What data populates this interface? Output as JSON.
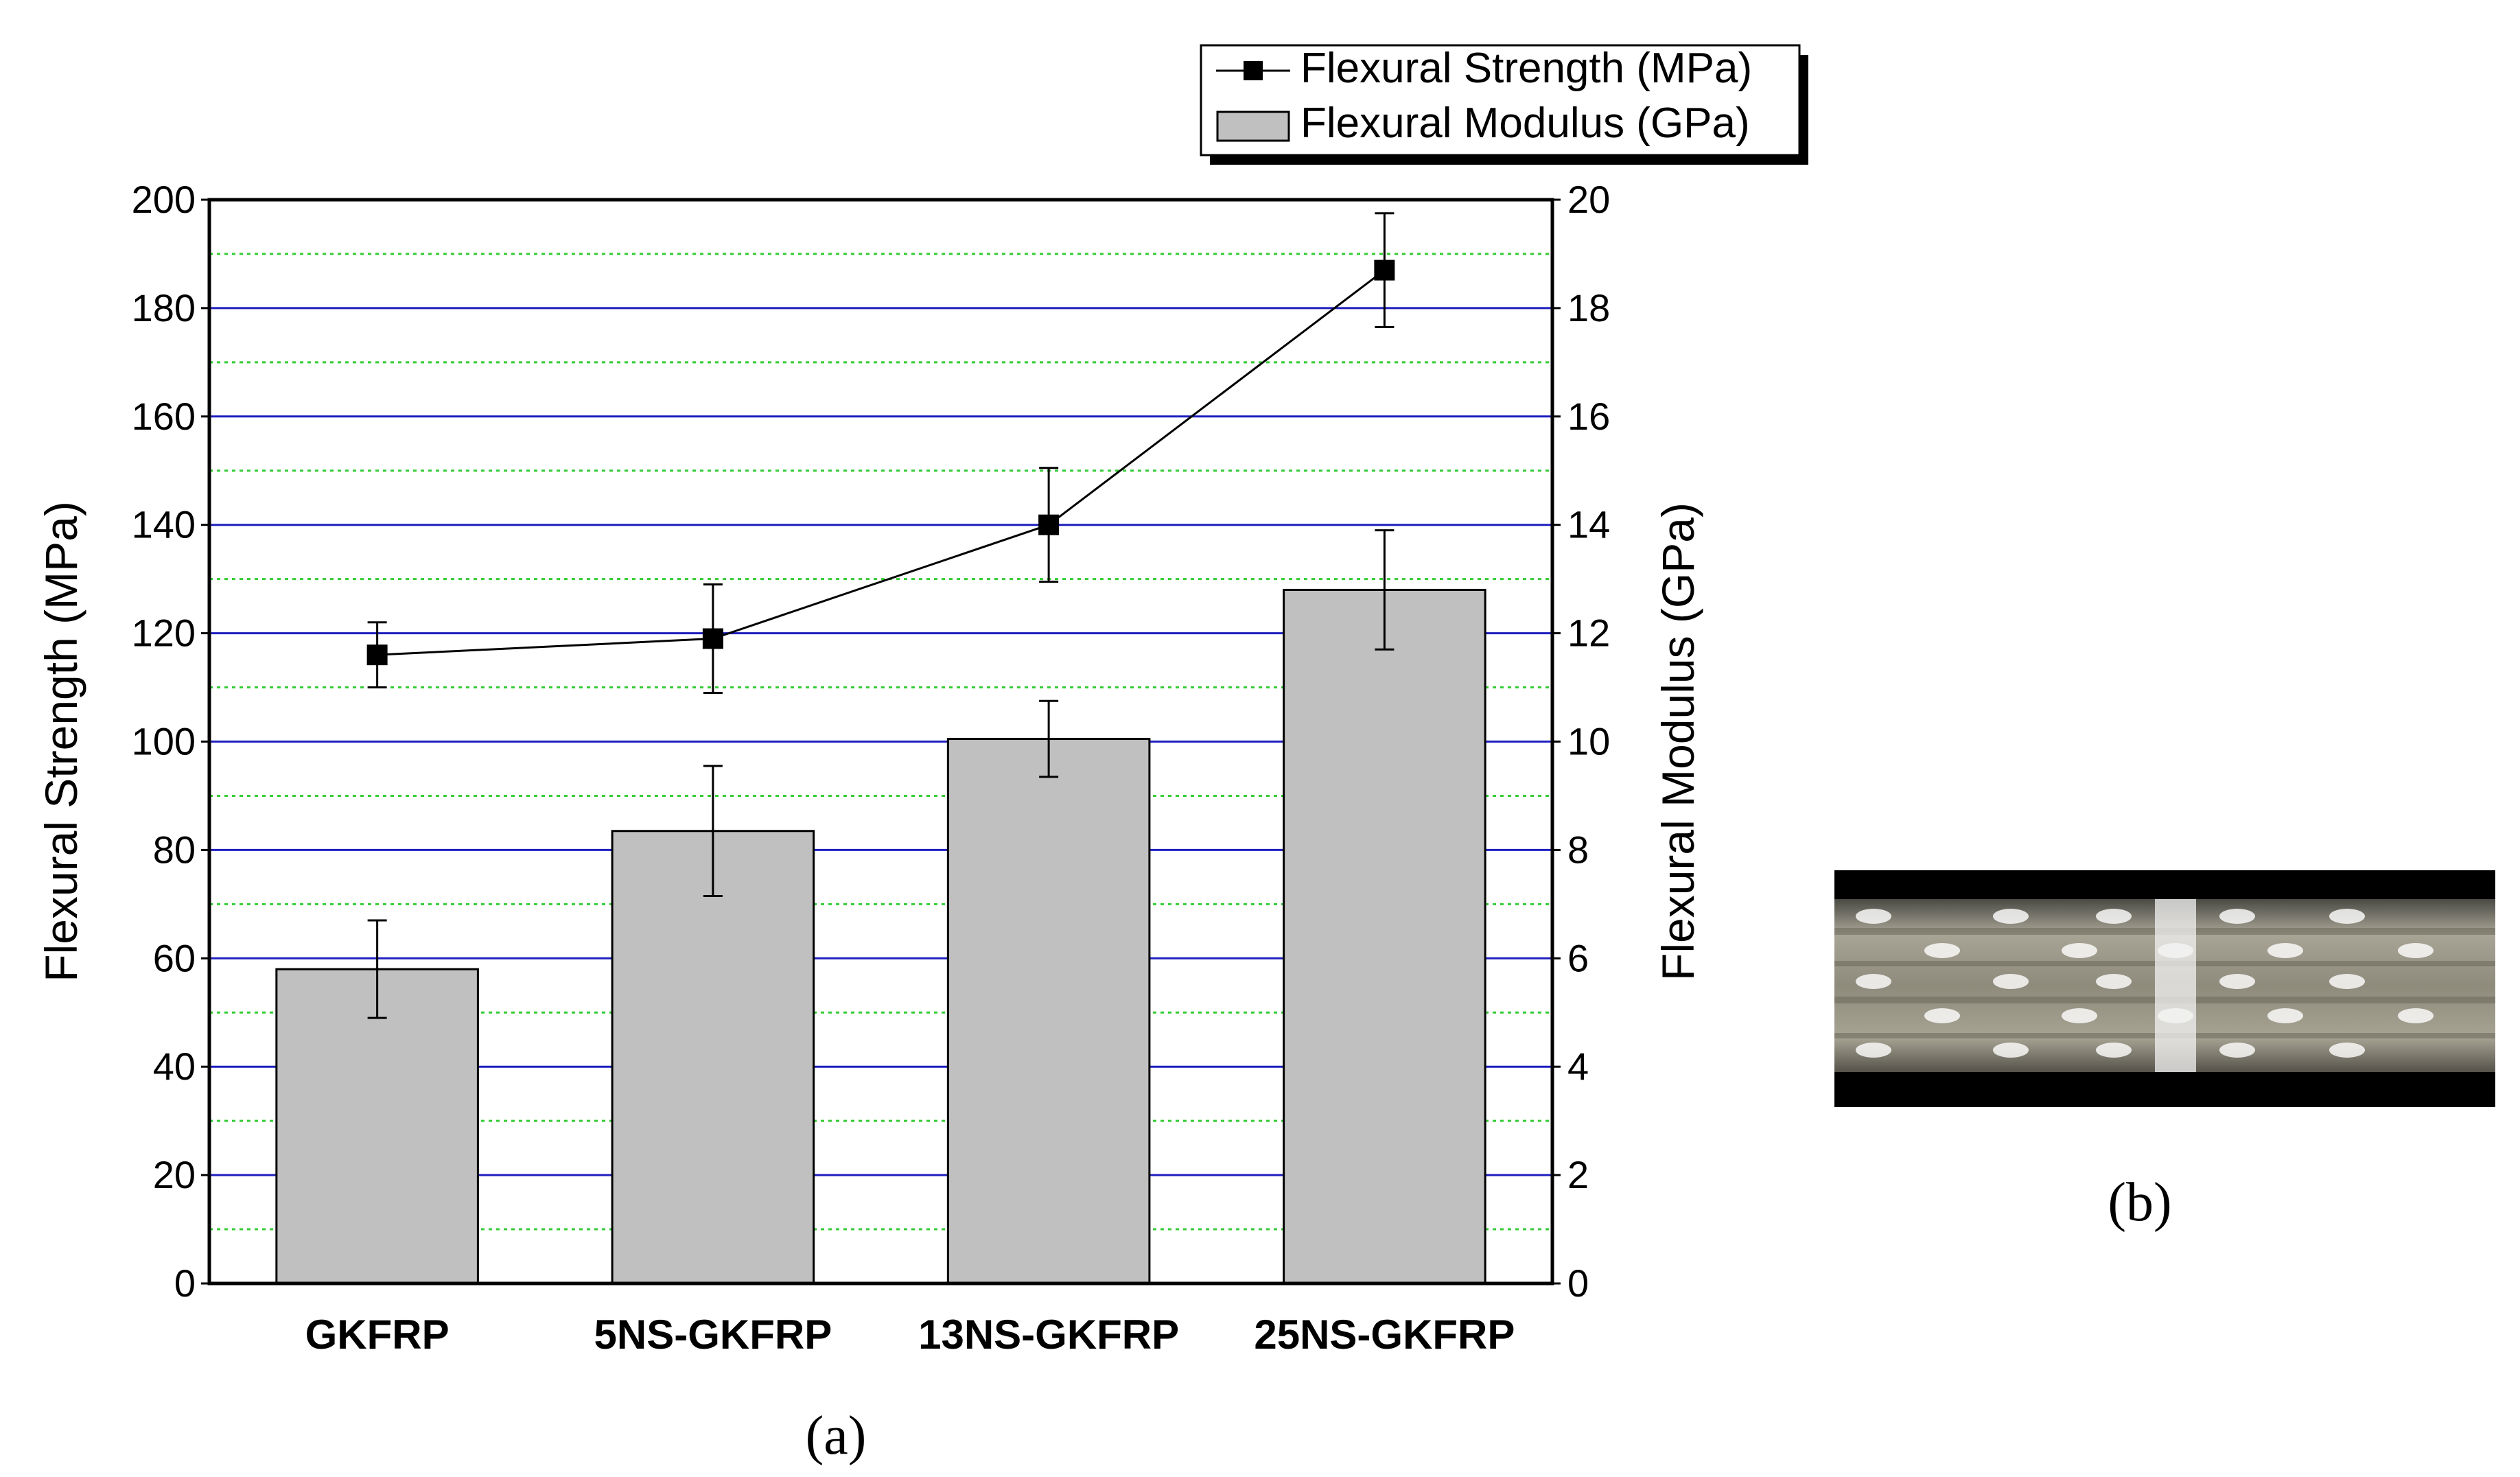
{
  "chart_data": {
    "type": "bar",
    "categories": [
      "GKFRP",
      "5NS-GKFRP",
      "13NS-GKFRP",
      "25NS-GKFRP"
    ],
    "series": [
      {
        "name": "Flexural Modulus (GPa)",
        "kind": "bar",
        "axis": "right",
        "values": [
          5.8,
          8.35,
          10.05,
          12.8
        ],
        "errors": [
          0.9,
          1.2,
          0.7,
          1.1
        ],
        "color": "#c0c0c0"
      },
      {
        "name": "Flexural Strength (MPa)",
        "kind": "line",
        "axis": "left",
        "values": [
          116,
          119,
          140,
          187
        ],
        "errors": [
          6,
          10,
          10.5,
          10.5
        ],
        "color": "#000000"
      }
    ],
    "ylabel": "Flexural Strength (MPa)",
    "ylabel_right": "Flexural Modulus (GPa)",
    "ylim": [
      0,
      200
    ],
    "ylim_right": [
      0,
      20
    ],
    "yticks": [
      0,
      20,
      40,
      60,
      80,
      100,
      120,
      140,
      160,
      180,
      200
    ],
    "yticks_right": [
      0,
      2,
      4,
      6,
      8,
      10,
      12,
      14,
      16,
      18,
      20
    ],
    "grid": {
      "major": true,
      "major_color": "#1f1fbf",
      "minor": true,
      "minor_color": "#33cc33"
    },
    "legend": "top-right"
  },
  "captions": {
    "panel_a": "(a)",
    "panel_b": "(b)"
  },
  "panel_b": {
    "kind": "photo",
    "description_icon": "specimen-cross-section-image"
  }
}
